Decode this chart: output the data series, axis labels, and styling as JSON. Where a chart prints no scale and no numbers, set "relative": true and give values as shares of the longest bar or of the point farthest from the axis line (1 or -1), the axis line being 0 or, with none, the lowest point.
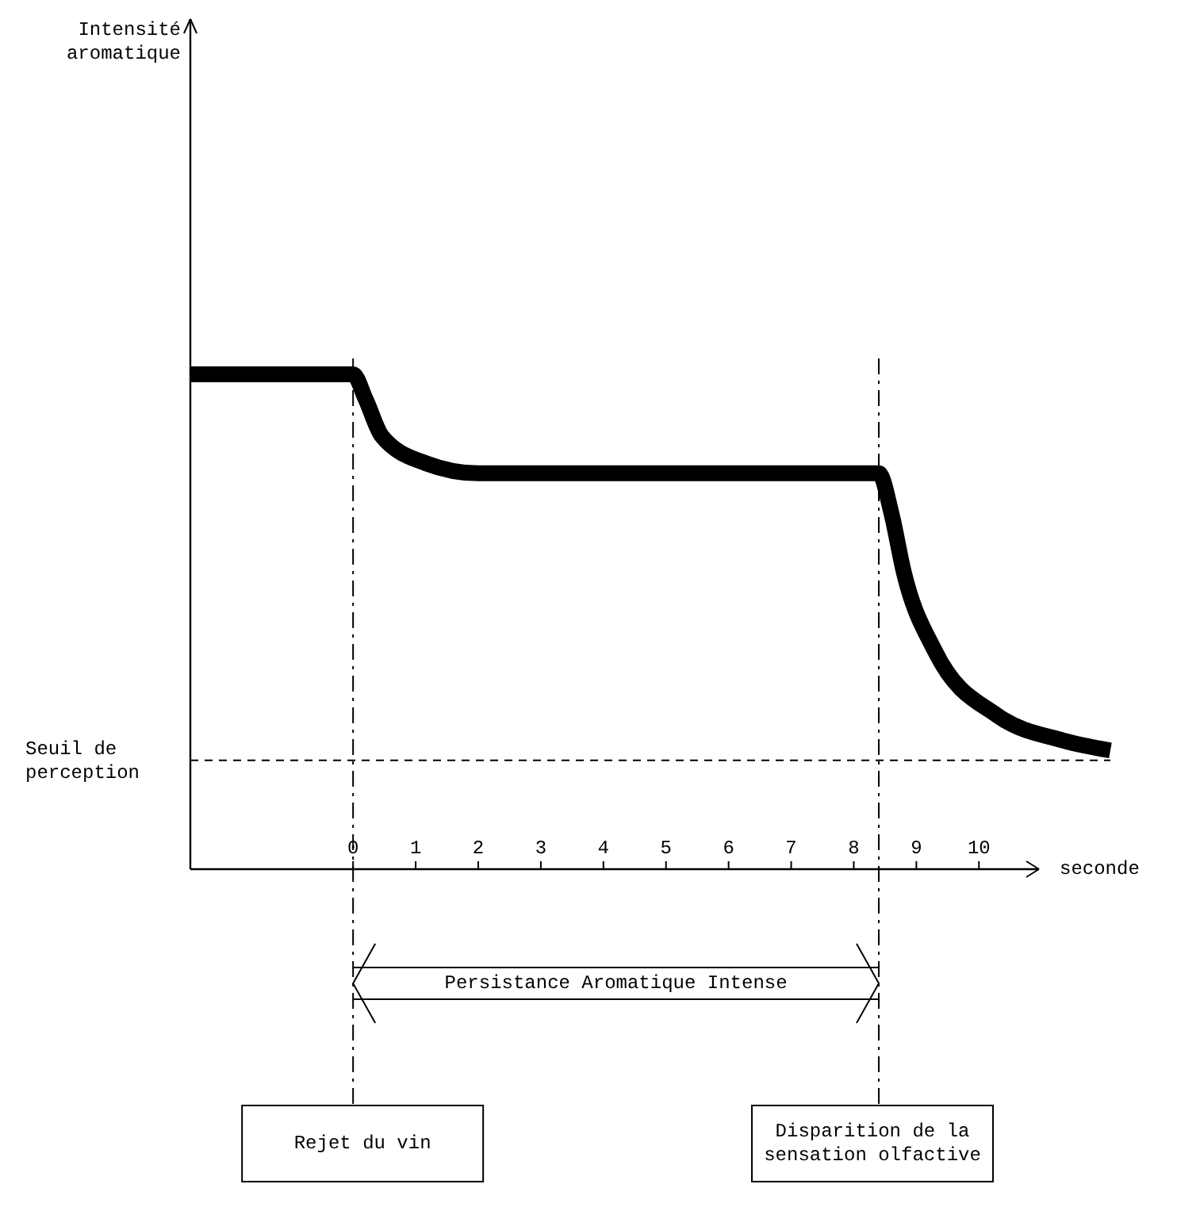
{
  "chart_data": {
    "type": "line",
    "relative": true,
    "xlabel": "seconde",
    "xlim": [
      -2.6,
      12.1
    ],
    "xticks": [
      0,
      1,
      2,
      3,
      4,
      5,
      6,
      7,
      8,
      9,
      10
    ],
    "tick_labels": "x",
    "series": [
      {
        "color": "#000000",
        "x": [
          -2.6,
          0,
          0.2,
          0.46,
          1.17,
          2,
          8.4,
          8.6,
          8.8,
          9.3,
          10.3,
          11.35,
          12.1
        ],
        "values": [
          1,
          1,
          0.95,
          0.875,
          0.82,
          0.8,
          0.8,
          0.72,
          0.6,
          0.44,
          0.31,
          0.26,
          0.24
        ]
      }
    ],
    "ref_lines": [
      {
        "axis": "y",
        "value": 0.22,
        "label": "Seuil de perception",
        "line_style": "dashed"
      },
      {
        "axis": "x",
        "value": 0,
        "label": "Rejet du vin",
        "line_style": "dashdot"
      },
      {
        "axis": "x",
        "value": 8.4,
        "label": "Disparition de la sensation olfactive",
        "line_style": "dashdot"
      }
    ],
    "annotations": [
      "Intensité aromatique",
      "Persistance Aromatique Intense"
    ]
  }
}
